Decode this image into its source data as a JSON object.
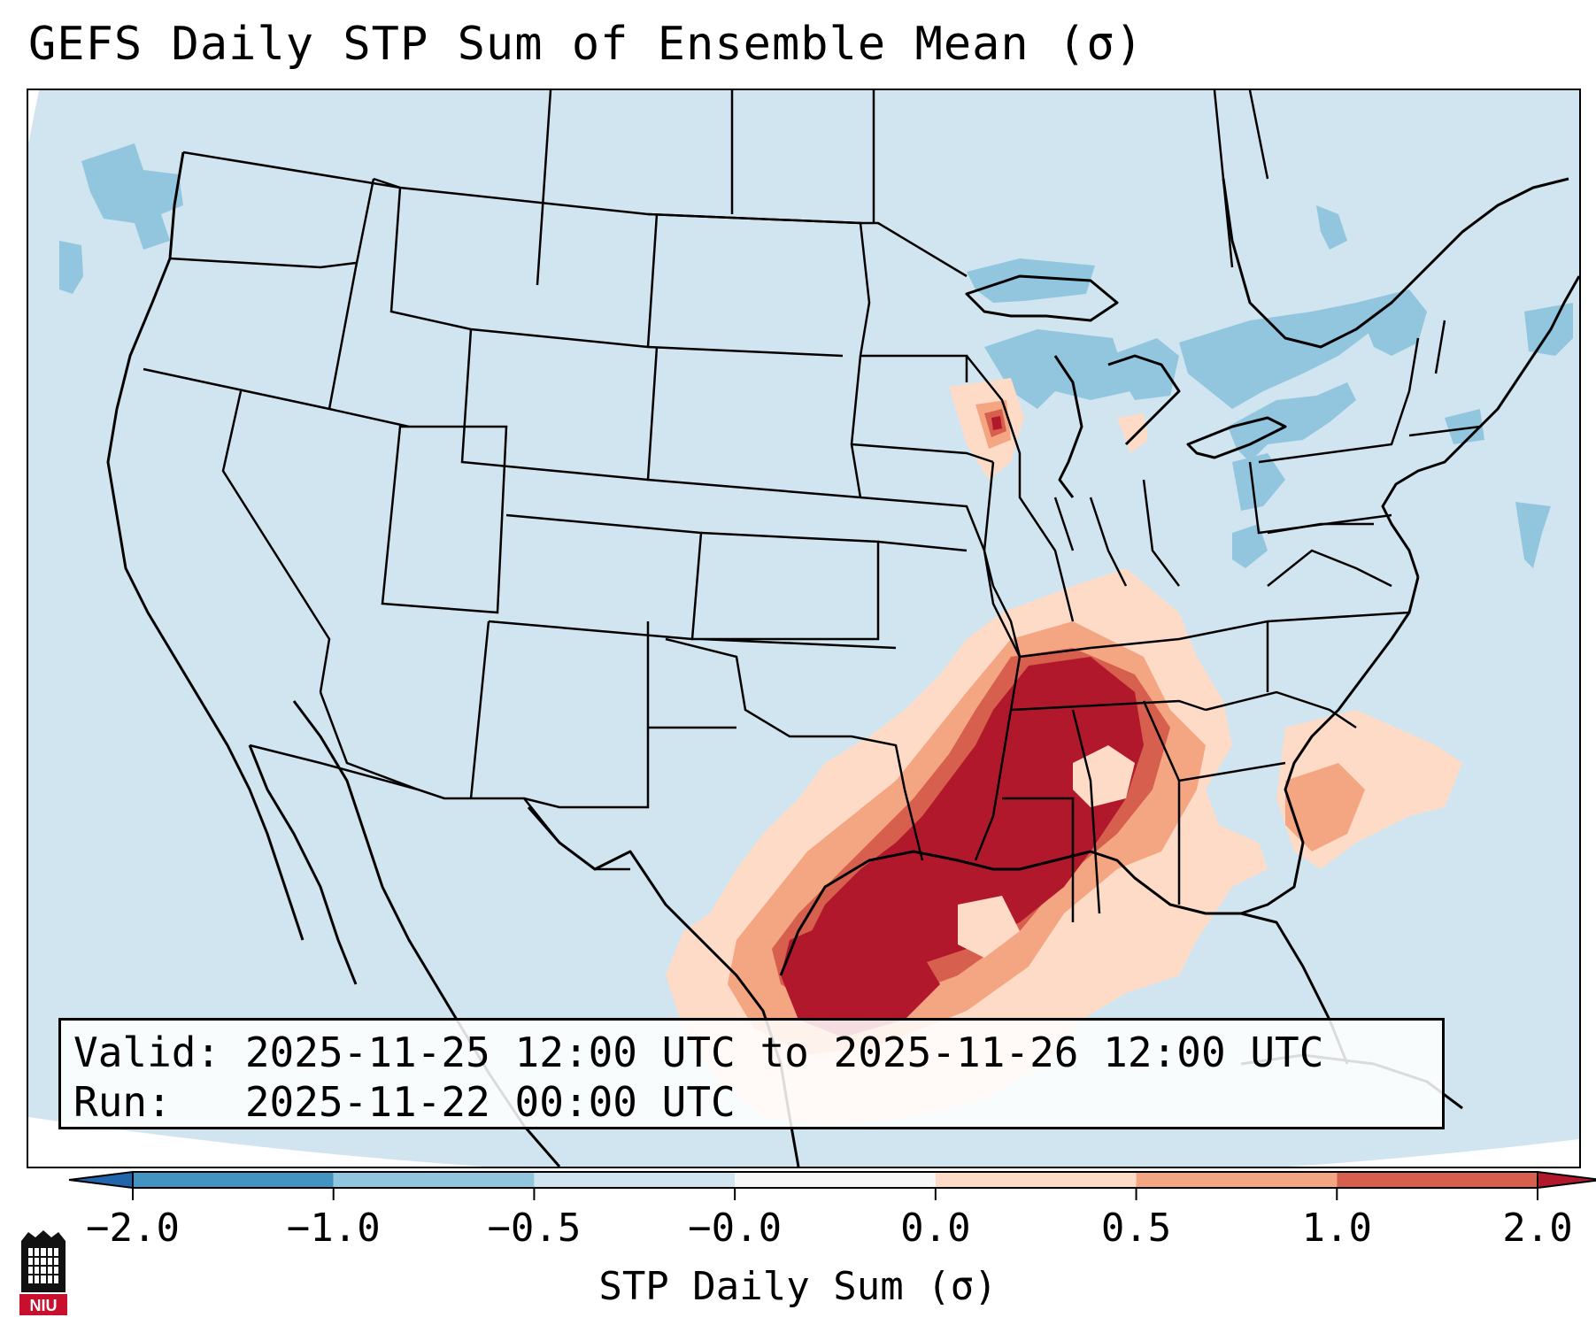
{
  "title": "GEFS Daily STP Sum of Ensemble Mean (σ)",
  "info": {
    "valid_line": "Valid: 2025-11-25 12:00 UTC to 2025-11-26 12:00 UTC",
    "run_line": "Run:   2025-11-22 00:00 UTC"
  },
  "colorbar": {
    "label": "STP Daily Sum (σ)",
    "ticks": [
      "−2.0",
      "−1.0",
      "−0.5",
      "−0.0",
      "0.0",
      "0.5",
      "1.0",
      "2.0"
    ],
    "colors": [
      "#2166ac",
      "#4393c3",
      "#92c5de",
      "#d1e5f0",
      "#f7f7f7",
      "#fddbc7",
      "#f4a582",
      "#d6604d",
      "#b2182b"
    ],
    "extend": "both"
  },
  "map": {
    "background_color": "#d1e5f0",
    "regions": [
      {
        "name": "gulf-coast-core",
        "value": 2.0
      },
      {
        "name": "lower-mississippi-valley",
        "value": 2.0
      },
      {
        "name": "southeast-outer",
        "value": 1.0
      },
      {
        "name": "atlantic-offshore",
        "value": 0.5
      },
      {
        "name": "wisconsin-patch",
        "value": 1.0
      },
      {
        "name": "great-lakes-band",
        "value": -0.5
      },
      {
        "name": "northeast-band",
        "value": -0.5
      },
      {
        "name": "pacific-northwest-band",
        "value": -0.5
      }
    ]
  },
  "logo": {
    "text": "NIU",
    "colors": [
      "#c8102e",
      "#000000"
    ]
  }
}
